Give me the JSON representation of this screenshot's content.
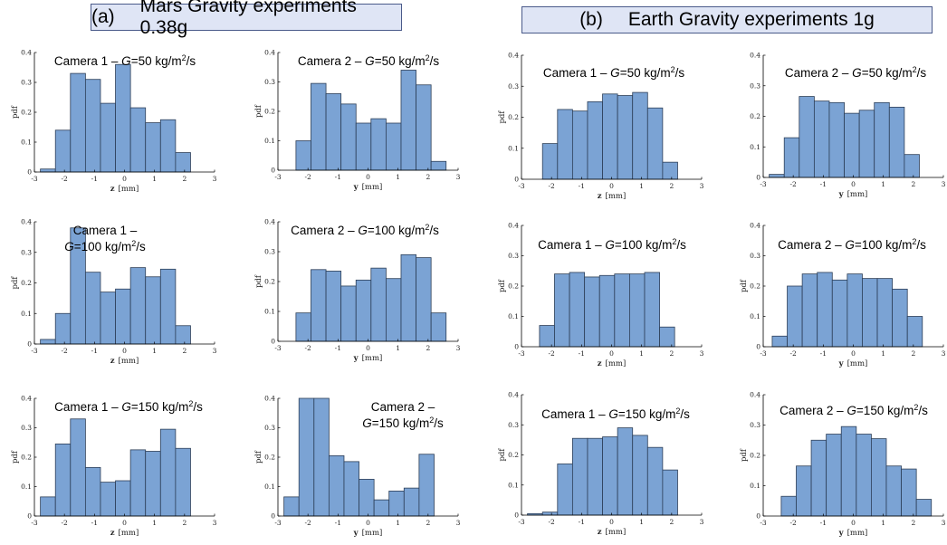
{
  "headers": {
    "a": {
      "label": "(a)",
      "text": "Mars Gravity experiments 0.38g"
    },
    "b": {
      "label": "(b)",
      "text": "Earth Gravity experiments 1g"
    }
  },
  "colors": {
    "bar_fill": "#7ba3d4",
    "bar_edge": "#2c3e57",
    "header_bg": "#dfe5f5"
  },
  "chart_data": [
    {
      "id": "a-c1-50",
      "type": "bar",
      "title": [
        "Camera 1 – G=50 kg/m²/s"
      ],
      "ylabel": "pdf",
      "xlabel_var": "z",
      "xlabel_unit": "[mm]",
      "xlim": [
        -3,
        3
      ],
      "ylim": [
        0,
        0.4
      ],
      "xticks": [
        -3,
        -2,
        -1,
        0,
        1,
        2,
        3
      ],
      "yticks": [
        0,
        0.1,
        0.2,
        0.3,
        0.4
      ],
      "bin_start": -2.8,
      "bin_width": 0.5,
      "values": [
        0.01,
        0.14,
        0.33,
        0.31,
        0.23,
        0.36,
        0.215,
        0.165,
        0.175,
        0.065
      ]
    },
    {
      "id": "a-c2-50",
      "type": "bar",
      "title": [
        "Camera 2 – G=50 kg/m²/s"
      ],
      "ylabel": "pdf",
      "xlabel_var": "y",
      "xlabel_unit": "[mm]",
      "xlim": [
        -3,
        3
      ],
      "ylim": [
        0,
        0.4
      ],
      "xticks": [
        -3,
        -2,
        -1,
        0,
        1,
        2,
        3
      ],
      "yticks": [
        0,
        0.1,
        0.2,
        0.3,
        0.4
      ],
      "bin_start": -2.4,
      "bin_width": 0.5,
      "values": [
        0.1,
        0.295,
        0.26,
        0.225,
        0.16,
        0.175,
        0.16,
        0.34,
        0.29,
        0.03
      ]
    },
    {
      "id": "b-c1-50",
      "type": "bar",
      "title": [
        "Camera 1 – G=50 kg/m²/s"
      ],
      "ylabel": "pdf",
      "xlabel_var": "z",
      "xlabel_unit": "[mm]",
      "xlim": [
        -3,
        3
      ],
      "ylim": [
        0,
        0.4
      ],
      "xticks": [
        -3,
        -2,
        -1,
        0,
        1,
        2,
        3
      ],
      "yticks": [
        0,
        0.1,
        0.2,
        0.3,
        0.4
      ],
      "bin_start": -2.3,
      "bin_width": 0.5,
      "values": [
        0.115,
        0.225,
        0.22,
        0.25,
        0.275,
        0.27,
        0.28,
        0.23,
        0.055
      ]
    },
    {
      "id": "b-c2-50",
      "type": "bar",
      "title": [
        "Camera 2 – G=50 kg/m²/s"
      ],
      "ylabel": "",
      "xlabel_var": "y",
      "xlabel_unit": "[mm]",
      "xlim": [
        -3,
        3
      ],
      "ylim": [
        0,
        0.4
      ],
      "xticks": [
        -3,
        -2,
        -1,
        0,
        1,
        2,
        3
      ],
      "yticks": [
        0,
        0.1,
        0.2,
        0.3,
        0.4
      ],
      "bin_start": -2.8,
      "bin_width": 0.5,
      "values": [
        0.01,
        0.13,
        0.265,
        0.25,
        0.245,
        0.21,
        0.22,
        0.245,
        0.23,
        0.075
      ]
    },
    {
      "id": "a-c1-100",
      "type": "bar",
      "title": [
        "Camera 1 –",
        "G=100 kg/m²/s"
      ],
      "ylabel": "pdf",
      "xlabel_var": "z",
      "xlabel_unit": "[mm]",
      "xlim": [
        -3,
        3
      ],
      "ylim": [
        0,
        0.4
      ],
      "xticks": [
        -3,
        -2,
        -1,
        0,
        1,
        2,
        3
      ],
      "yticks": [
        0,
        0.1,
        0.2,
        0.3,
        0.4
      ],
      "bin_start": -2.8,
      "bin_width": 0.5,
      "values": [
        0.015,
        0.1,
        0.38,
        0.235,
        0.17,
        0.18,
        0.25,
        0.22,
        0.245,
        0.06
      ]
    },
    {
      "id": "a-c2-100",
      "type": "bar",
      "title": [
        "Camera 2 – G=100 kg/m²/s"
      ],
      "ylabel": "pdf",
      "xlabel_var": "y",
      "xlabel_unit": "[mm]",
      "xlim": [
        -3,
        3
      ],
      "ylim": [
        0,
        0.4
      ],
      "xticks": [
        -3,
        -2,
        -1,
        0,
        1,
        2,
        3
      ],
      "yticks": [
        0,
        0.1,
        0.2,
        0.3,
        0.4
      ],
      "bin_start": -2.4,
      "bin_width": 0.5,
      "values": [
        0.095,
        0.24,
        0.235,
        0.185,
        0.205,
        0.245,
        0.21,
        0.29,
        0.28,
        0.095
      ]
    },
    {
      "id": "b-c1-100",
      "type": "bar",
      "title": [
        "Camera 1 – G=100 kg/m²/s"
      ],
      "ylabel": "pdf",
      "xlabel_var": "z",
      "xlabel_unit": "[mm]",
      "xlim": [
        -3,
        3
      ],
      "ylim": [
        0,
        0.4
      ],
      "xticks": [
        -3,
        -2,
        -1,
        0,
        1,
        2,
        3
      ],
      "yticks": [
        0,
        0.1,
        0.2,
        0.3,
        0.4
      ],
      "bin_start": -2.4,
      "bin_width": 0.5,
      "values": [
        0.07,
        0.24,
        0.245,
        0.23,
        0.235,
        0.24,
        0.24,
        0.245,
        0.065
      ]
    },
    {
      "id": "b-c2-100",
      "type": "bar",
      "title": [
        "Camera 2 – G=100 kg/m²/s"
      ],
      "ylabel": "pdf",
      "xlabel_var": "y",
      "xlabel_unit": "[mm]",
      "xlim": [
        -3,
        3
      ],
      "ylim": [
        0,
        0.4
      ],
      "xticks": [
        -3,
        -2,
        -1,
        0,
        1,
        2,
        3
      ],
      "yticks": [
        0,
        0.1,
        0.2,
        0.3,
        0.4
      ],
      "bin_start": -2.7,
      "bin_width": 0.5,
      "values": [
        0.035,
        0.2,
        0.24,
        0.245,
        0.22,
        0.24,
        0.225,
        0.225,
        0.19,
        0.1
      ]
    },
    {
      "id": "a-c1-150",
      "type": "bar",
      "title": [
        "Camera 1 – G=150 kg/m²/s"
      ],
      "ylabel": "pdf",
      "xlabel_var": "z",
      "xlabel_unit": "[mm]",
      "xlim": [
        -3,
        3
      ],
      "ylim": [
        0,
        0.4
      ],
      "xticks": [
        -3,
        -2,
        -1,
        0,
        1,
        2,
        3
      ],
      "yticks": [
        0,
        0.1,
        0.2,
        0.3,
        0.4
      ],
      "bin_start": -2.8,
      "bin_width": 0.5,
      "values": [
        0.065,
        0.245,
        0.33,
        0.165,
        0.115,
        0.12,
        0.225,
        0.22,
        0.295,
        0.23
      ]
    },
    {
      "id": "a-c2-150",
      "type": "bar",
      "title": [
        "Camera 2 –",
        "G=150 kg/m²/s"
      ],
      "ylabel": "pdf",
      "xlabel_var": "y",
      "xlabel_unit": "[mm]",
      "xlim": [
        -3,
        3
      ],
      "ylim": [
        0,
        0.4
      ],
      "xticks": [
        -3,
        -2,
        -1,
        0,
        1,
        2,
        3
      ],
      "yticks": [
        0,
        0.1,
        0.2,
        0.3,
        0.4
      ],
      "bin_start": -2.8,
      "bin_width": 0.5,
      "values": [
        0.065,
        0.4,
        0.4,
        0.205,
        0.185,
        0.125,
        0.055,
        0.085,
        0.095,
        0.21
      ]
    },
    {
      "id": "b-c1-150",
      "type": "bar",
      "title": [
        "Camera 1 – G=150 kg/m²/s"
      ],
      "ylabel": "pdf",
      "xlabel_var": "z",
      "xlabel_unit": "[mm]",
      "xlim": [
        -3,
        3
      ],
      "ylim": [
        0,
        0.4
      ],
      "xticks": [
        -3,
        -2,
        -1,
        0,
        1,
        2,
        3
      ],
      "yticks": [
        0,
        0.1,
        0.2,
        0.3,
        0.4
      ],
      "bin_start": -2.8,
      "bin_width": 0.5,
      "values": [
        0.005,
        0.01,
        0.17,
        0.255,
        0.255,
        0.26,
        0.29,
        0.265,
        0.225,
        0.15
      ]
    },
    {
      "id": "b-c2-150",
      "type": "bar",
      "title": [
        "Camera 2 – G=150 kg/m²/s"
      ],
      "ylabel": "pdf",
      "xlabel_var": "y",
      "xlabel_unit": "[mm]",
      "xlim": [
        -3,
        3
      ],
      "ylim": [
        0,
        0.4
      ],
      "xticks": [
        -3,
        -2,
        -1,
        0,
        1,
        2,
        3
      ],
      "yticks": [
        0,
        0.1,
        0.2,
        0.3,
        0.4
      ],
      "bin_start": -2.4,
      "bin_width": 0.5,
      "values": [
        0.065,
        0.165,
        0.25,
        0.27,
        0.295,
        0.27,
        0.255,
        0.165,
        0.155,
        0.055
      ]
    }
  ]
}
